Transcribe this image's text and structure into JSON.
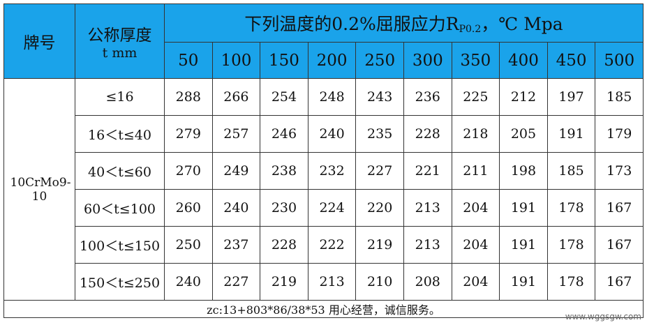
{
  "header": {
    "grade": "牌号",
    "thickness": "公称厚度",
    "thickness_unit": "t mm",
    "title_main": "下列温度的0.2%屈服应力R",
    "title_sub": "P0.2",
    "title_tail": "，℃ Mpa",
    "temperatures": [
      "50",
      "100",
      "150",
      "200",
      "250",
      "300",
      "350",
      "400",
      "450",
      "500"
    ]
  },
  "table": {
    "grade": "10CrMo9-10",
    "rows": [
      {
        "thickness": "≤16",
        "values": [
          "288",
          "266",
          "254",
          "248",
          "243",
          "236",
          "225",
          "212",
          "197",
          "185"
        ]
      },
      {
        "thickness": "16＜t≤40",
        "values": [
          "279",
          "257",
          "246",
          "240",
          "235",
          "228",
          "218",
          "205",
          "191",
          "179"
        ]
      },
      {
        "thickness": "40＜t≤60",
        "values": [
          "270",
          "249",
          "238",
          "232",
          "227",
          "221",
          "211",
          "198",
          "185",
          "173"
        ]
      },
      {
        "thickness": "60＜t≤100",
        "values": [
          "260",
          "240",
          "230",
          "224",
          "220",
          "213",
          "204",
          "191",
          "178",
          "167"
        ]
      },
      {
        "thickness": "100＜t≤150",
        "values": [
          "250",
          "237",
          "228",
          "222",
          "219",
          "213",
          "204",
          "191",
          "178",
          "167"
        ]
      },
      {
        "thickness": "150＜t≤250",
        "values": [
          "240",
          "227",
          "219",
          "213",
          "210",
          "208",
          "204",
          "191",
          "178",
          "167"
        ]
      }
    ]
  },
  "footer": {
    "text": "zc:13+803*86/38*53 用心经营，诚信服务。",
    "watermark": "www.wggsgw.com"
  }
}
